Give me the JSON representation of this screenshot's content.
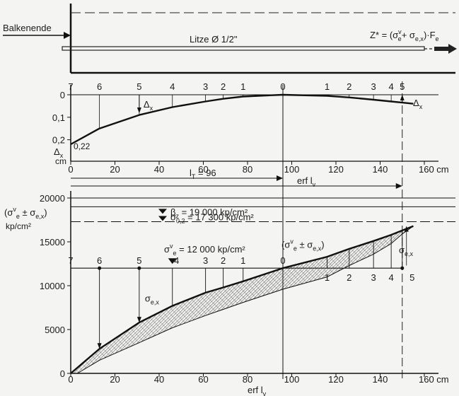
{
  "top_panel": {
    "beam_end_label": "Balkenende",
    "strand_label": "Litze Ø 1/2\"",
    "force_label": "Z* = (σ",
    "force_sup": "v",
    "force_sub_e": "e",
    "force_plus": "+ σ",
    "force_sub_ex": "e,x",
    "force_tail": ")·F",
    "force_sub_fe": "e"
  },
  "slip_chart": {
    "y_ticks": [
      "0",
      "0,1",
      "0,2"
    ],
    "y_unit": "cm",
    "y_symbol": "Δ",
    "y_symbol_sub": "x",
    "end_value_label": "0,22",
    "delta_label": "Δ",
    "delta_sub": "x",
    "top_numbers": [
      "7",
      "6",
      "5",
      "4",
      "3",
      "2",
      "1",
      "0",
      "1",
      "2",
      "3",
      "4",
      "5"
    ],
    "x_ticks": [
      "0",
      "20",
      "40",
      "60",
      "80",
      "100",
      "120",
      "140",
      "160 cm"
    ],
    "lt_label": "l",
    "lt_sub": "T",
    "lt_value": " = 96",
    "erf_label": "erf l",
    "erf_sub": "v"
  },
  "stress_chart": {
    "y_ticks": [
      "0",
      "5000",
      "10000",
      "15000",
      "20000"
    ],
    "y_label_main": "(σ",
    "y_label_sup": "v",
    "y_label_sub1": "e",
    "y_label_mid": " ± σ",
    "y_label_sub2": "e,x",
    "y_label_close": ")",
    "y_unit": "kp/cm²",
    "beta_label": "β",
    "beta_sub": "z",
    "beta_value": " = 19 000 kp/cm²",
    "sigma02_label": "σ",
    "sigma02_sub": "0,2",
    "sigma02_value": " = 17 300 kp/cm²",
    "sigma_ev_label": "σ",
    "sigma_ev_sup": "v",
    "sigma_ev_sub": "e",
    "sigma_ev_value": " = 12 000 kp/cm²",
    "sum_label_main": "(σ",
    "sum_label_sup": "v",
    "sum_label_sub1": "e",
    "sum_label_mid": " ± σ",
    "sum_label_sub2": "e,x",
    "sum_label_close": ")",
    "sigma_ex_label": "σ",
    "sigma_ex_sub": "e,x",
    "top_numbers_left": [
      "7",
      "6",
      "5",
      "4",
      "3",
      "2",
      "1",
      "0"
    ],
    "bottom_numbers_right": [
      "1",
      "2",
      "3",
      "4",
      "5"
    ],
    "x_ticks": [
      "0",
      "20",
      "40",
      "60",
      "80",
      "100",
      "120",
      "140",
      "160 cm"
    ],
    "xlabel": "erf l",
    "xlabel_sub": "v"
  },
  "chart_data": [
    {
      "type": "line",
      "name": "slip",
      "x_unit": "cm",
      "y_unit": "cm",
      "xlim": [
        0,
        160
      ],
      "ylim": [
        0,
        0.22
      ],
      "y_inverted": true,
      "points": [
        [
          0,
          0.22
        ],
        [
          13,
          0.15
        ],
        [
          31,
          0.09
        ],
        [
          46,
          0.055
        ],
        [
          61,
          0.03
        ],
        [
          69,
          0.018
        ],
        [
          78,
          0.008
        ],
        [
          96,
          0
        ],
        [
          116,
          0.005
        ],
        [
          126,
          0.012
        ],
        [
          137,
          0.022
        ],
        [
          145,
          0.03
        ],
        [
          150,
          0.035
        ],
        [
          155,
          0.04
        ]
      ],
      "marker_positions_cm": [
        0,
        13,
        31,
        46,
        61,
        69,
        78,
        96,
        116,
        126,
        137,
        145,
        150
      ],
      "lt_cm": 96,
      "erf_lv_cm": 150
    },
    {
      "type": "line",
      "name": "stress",
      "x_unit": "cm",
      "y_unit": "kp/cm²",
      "xlim": [
        0,
        160
      ],
      "ylim": [
        0,
        20000
      ],
      "horizontal_lines": [
        19000,
        17300,
        12000
      ],
      "upper_curve": [
        [
          0,
          0
        ],
        [
          13,
          2800
        ],
        [
          31,
          5800
        ],
        [
          46,
          7700
        ],
        [
          61,
          9200
        ],
        [
          69,
          9800
        ],
        [
          78,
          10500
        ],
        [
          96,
          12000
        ],
        [
          116,
          13300
        ],
        [
          126,
          14200
        ],
        [
          137,
          15100
        ],
        [
          145,
          15800
        ],
        [
          150,
          16300
        ],
        [
          155,
          16800
        ]
      ],
      "lower_curve": [
        [
          3,
          0
        ],
        [
          13,
          1500
        ],
        [
          31,
          3500
        ],
        [
          46,
          5200
        ],
        [
          61,
          6600
        ],
        [
          69,
          7300
        ],
        [
          78,
          8100
        ],
        [
          96,
          9600
        ],
        [
          116,
          11000
        ],
        [
          126,
          12300
        ],
        [
          137,
          13600
        ],
        [
          145,
          14800
        ],
        [
          150,
          15900
        ],
        [
          155,
          16800
        ]
      ],
      "marker_positions_cm": [
        0,
        13,
        31,
        46,
        61,
        69,
        78,
        96,
        116,
        126,
        137,
        145,
        150
      ]
    }
  ]
}
